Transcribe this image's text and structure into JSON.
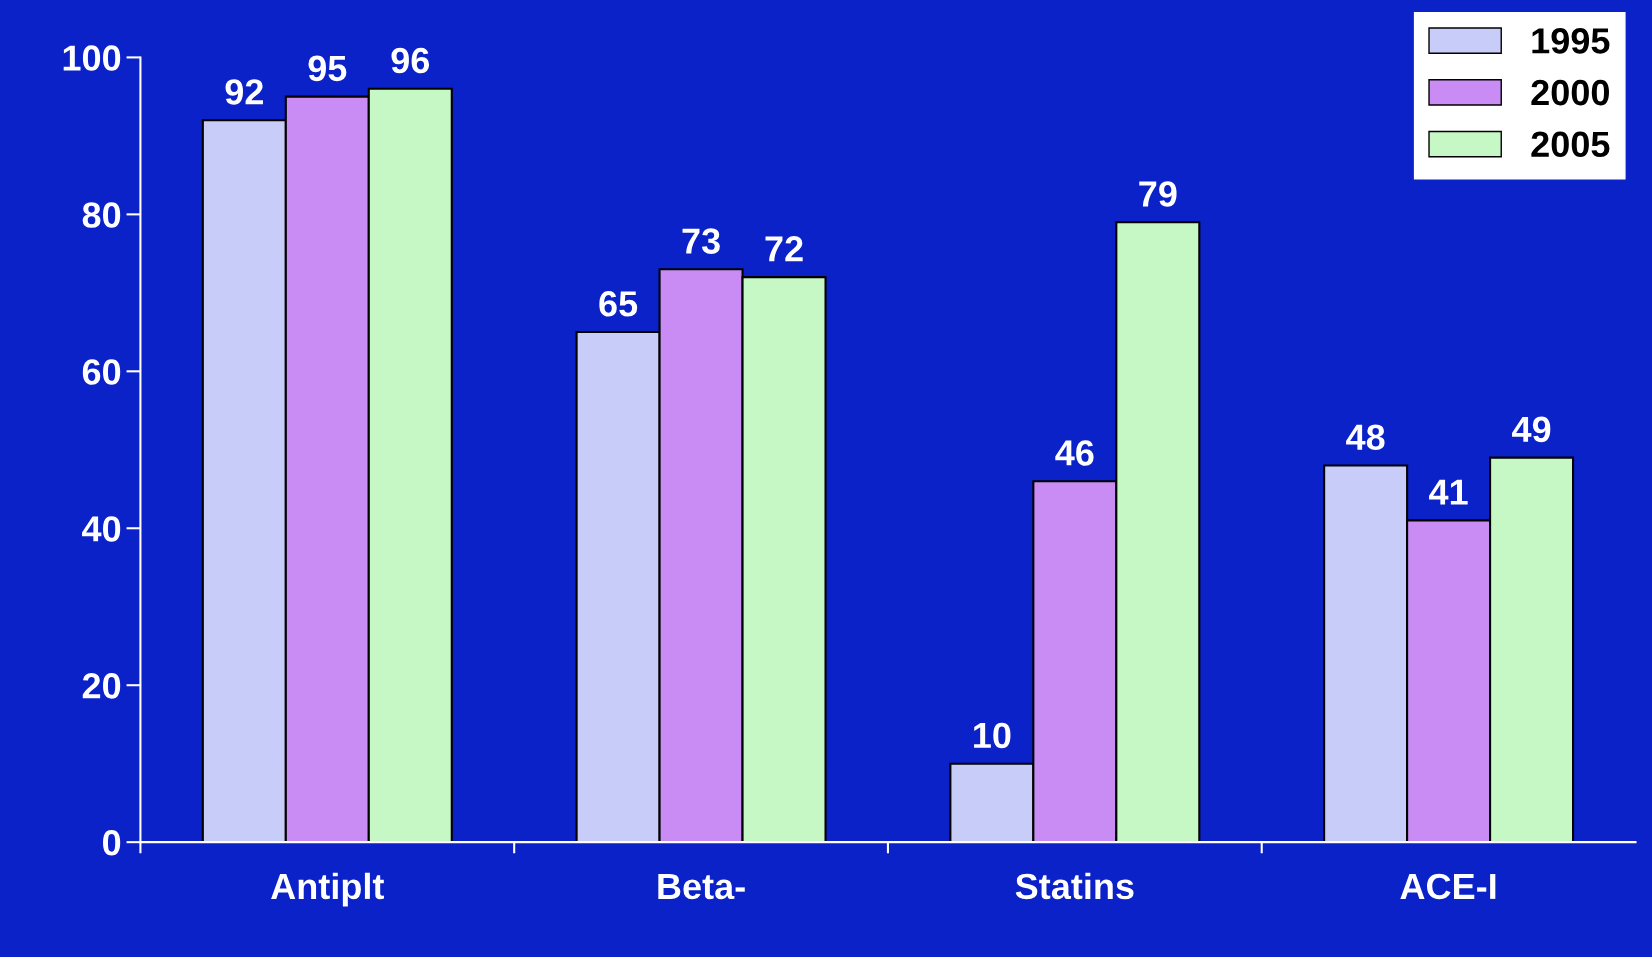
{
  "chart_data": {
    "type": "bar",
    "categories": [
      "Antiplt",
      "Beta-",
      "Statins",
      "ACE-I"
    ],
    "series": [
      {
        "name": "1995",
        "color": "#c8ccf8",
        "values": [
          92,
          65,
          10,
          48
        ]
      },
      {
        "name": "2000",
        "color": "#c98cf5",
        "values": [
          95,
          73,
          46,
          41
        ]
      },
      {
        "name": "2005",
        "color": "#c6f8c6",
        "values": [
          96,
          72,
          79,
          49
        ]
      }
    ],
    "ylim": [
      0,
      100
    ],
    "yticks": [
      0,
      20,
      40,
      60,
      80,
      100
    ],
    "data_labels": true,
    "grid": false,
    "legend": "top right"
  }
}
